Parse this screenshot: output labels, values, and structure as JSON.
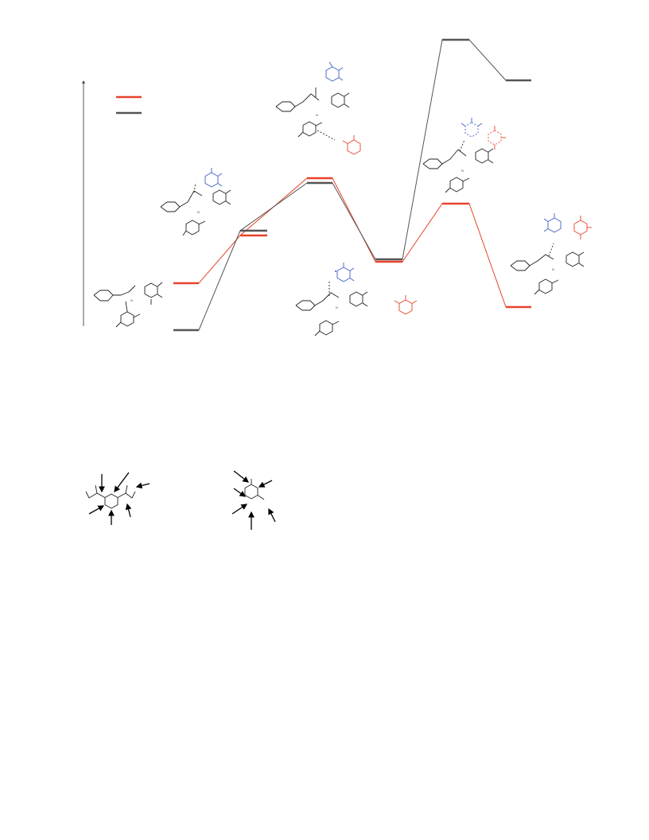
{
  "figure": {
    "legend": {
      "entries": [
        {
          "color": "#e8432a"
        },
        {
          "color": "#555555"
        }
      ]
    },
    "colors": {
      "pathway_red": "#e8432a",
      "pathway_black": "#555555",
      "fragment_blue": "#3c5fc8",
      "structure": "#222222"
    },
    "structure_labels": [
      "N",
      "N",
      "N",
      "N",
      "N",
      "N"
    ],
    "arrows_on_structures": 13
  }
}
